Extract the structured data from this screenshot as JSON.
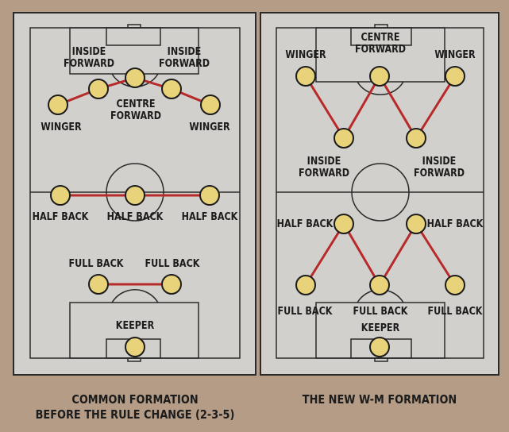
{
  "colors": {
    "background": "#b49c86",
    "pitch": "#d2d0cc",
    "lines": "#2a2a2a",
    "player_fill": "#e8d27a",
    "link": "#b82a2a"
  },
  "left": {
    "caption_line1": "COMMON FORMATION",
    "caption_line2": "BEFORE THE RULE CHANGE (2-3-5)",
    "labels": {
      "inside_forward_left_1": "INSIDE",
      "inside_forward_left_2": "FORWARD",
      "inside_forward_right_1": "INSIDE",
      "inside_forward_right_2": "FORWARD",
      "centre_forward_1": "CENTRE",
      "centre_forward_2": "FORWARD",
      "winger_left": "WINGER",
      "winger_right": "WINGER",
      "half_back_left": "HALF BACK",
      "half_back_centre": "HALF BACK",
      "half_back_right": "HALF BACK",
      "full_back_left": "FULL BACK",
      "full_back_right": "FULL BACK",
      "keeper": "KEEPER"
    }
  },
  "right": {
    "caption": "THE NEW W-M FORMATION",
    "labels": {
      "winger_left": "WINGER",
      "centre_forward_1": "CENTRE",
      "centre_forward_2": "FORWARD",
      "winger_right": "WINGER",
      "inside_forward_left_1": "INSIDE",
      "inside_forward_left_2": "FORWARD",
      "inside_forward_right_1": "INSIDE",
      "inside_forward_right_2": "FORWARD",
      "half_back_left": "HALF BACK",
      "half_back_right": "HALF BACK",
      "full_back_left": "FULL BACK",
      "full_back_centre": "FULL BACK",
      "full_back_right": "FULL BACK",
      "keeper": "KEEPER"
    }
  }
}
